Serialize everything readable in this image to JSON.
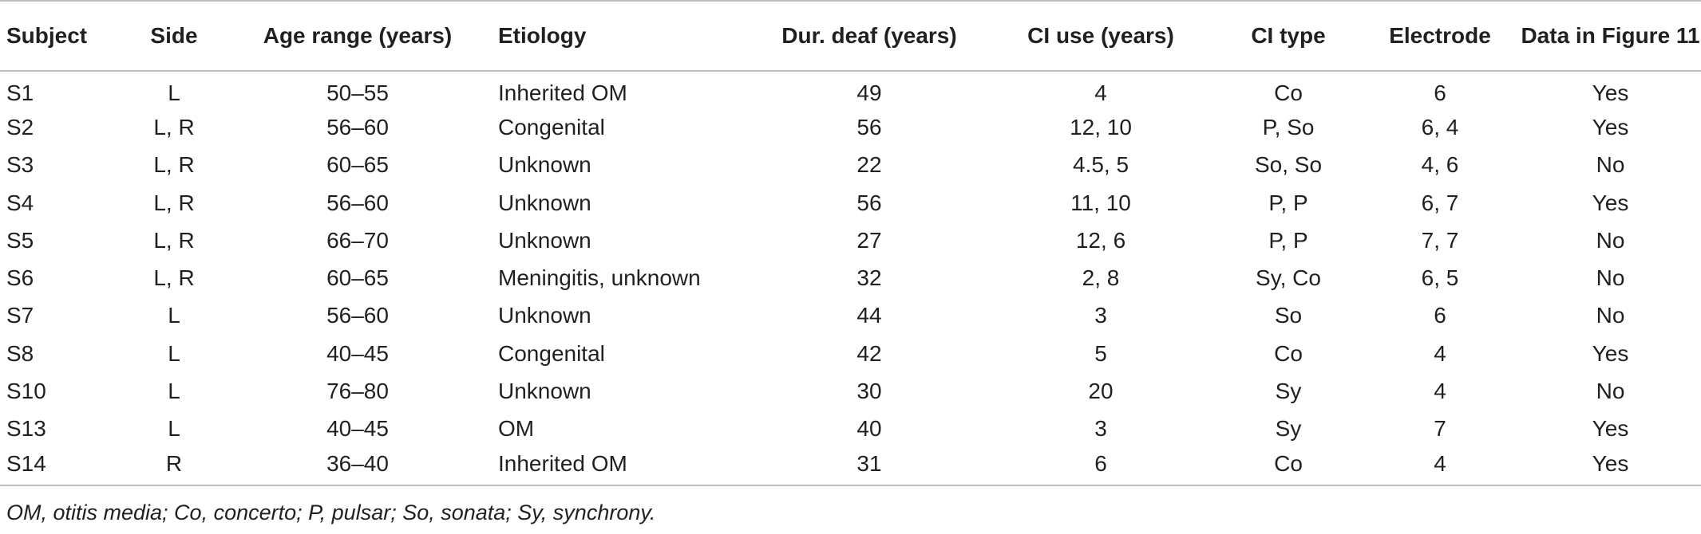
{
  "table": {
    "headers": {
      "subject": "Subject",
      "side": "Side",
      "age_range": "Age range (years)",
      "etiology": "Etiology",
      "dur_deaf": "Dur. deaf (years)",
      "ci_use": "CI use (years)",
      "ci_type": "CI type",
      "electrode": "Electrode",
      "data_in_figure": "Data in Figure 11"
    },
    "rows": [
      {
        "subject": "S1",
        "side": "L",
        "age_range": "50–55",
        "etiology": "Inherited OM",
        "dur_deaf": "49",
        "ci_use": "4",
        "ci_type": "Co",
        "electrode": "6",
        "data_in_figure": "Yes"
      },
      {
        "subject": "S2",
        "side": "L, R",
        "age_range": "56–60",
        "etiology": "Congenital",
        "dur_deaf": "56",
        "ci_use": "12, 10",
        "ci_type": "P, So",
        "electrode": "6, 4",
        "data_in_figure": "Yes"
      },
      {
        "subject": "S3",
        "side": "L, R",
        "age_range": "60–65",
        "etiology": "Unknown",
        "dur_deaf": "22",
        "ci_use": "4.5, 5",
        "ci_type": "So, So",
        "electrode": "4, 6",
        "data_in_figure": "No"
      },
      {
        "subject": "S4",
        "side": "L, R",
        "age_range": "56–60",
        "etiology": "Unknown",
        "dur_deaf": "56",
        "ci_use": "11, 10",
        "ci_type": "P, P",
        "electrode": "6, 7",
        "data_in_figure": "Yes"
      },
      {
        "subject": "S5",
        "side": "L, R",
        "age_range": "66–70",
        "etiology": "Unknown",
        "dur_deaf": "27",
        "ci_use": "12, 6",
        "ci_type": "P, P",
        "electrode": "7, 7",
        "data_in_figure": "No"
      },
      {
        "subject": "S6",
        "side": "L, R",
        "age_range": "60–65",
        "etiology": "Meningitis, unknown",
        "dur_deaf": "32",
        "ci_use": "2, 8",
        "ci_type": "Sy, Co",
        "electrode": "6, 5",
        "data_in_figure": "No"
      },
      {
        "subject": "S7",
        "side": "L",
        "age_range": "56–60",
        "etiology": "Unknown",
        "dur_deaf": "44",
        "ci_use": "3",
        "ci_type": "So",
        "electrode": "6",
        "data_in_figure": "No"
      },
      {
        "subject": "S8",
        "side": "L",
        "age_range": "40–45",
        "etiology": "Congenital",
        "dur_deaf": "42",
        "ci_use": "5",
        "ci_type": "Co",
        "electrode": "4",
        "data_in_figure": "Yes"
      },
      {
        "subject": "S10",
        "side": "L",
        "age_range": "76–80",
        "etiology": "Unknown",
        "dur_deaf": "30",
        "ci_use": "20",
        "ci_type": "Sy",
        "electrode": "4",
        "data_in_figure": "No"
      },
      {
        "subject": "S13",
        "side": "L",
        "age_range": "40–45",
        "etiology": "OM",
        "dur_deaf": "40",
        "ci_use": "3",
        "ci_type": "Sy",
        "electrode": "7",
        "data_in_figure": "Yes"
      },
      {
        "subject": "S14",
        "side": "R",
        "age_range": "36–40",
        "etiology": "Inherited OM",
        "dur_deaf": "31",
        "ci_use": "6",
        "ci_type": "Co",
        "electrode": "4",
        "data_in_figure": "Yes"
      }
    ]
  },
  "footnote": "OM, otitis media; Co, concerto; P, pulsar; So, sonata; Sy, synchrony."
}
